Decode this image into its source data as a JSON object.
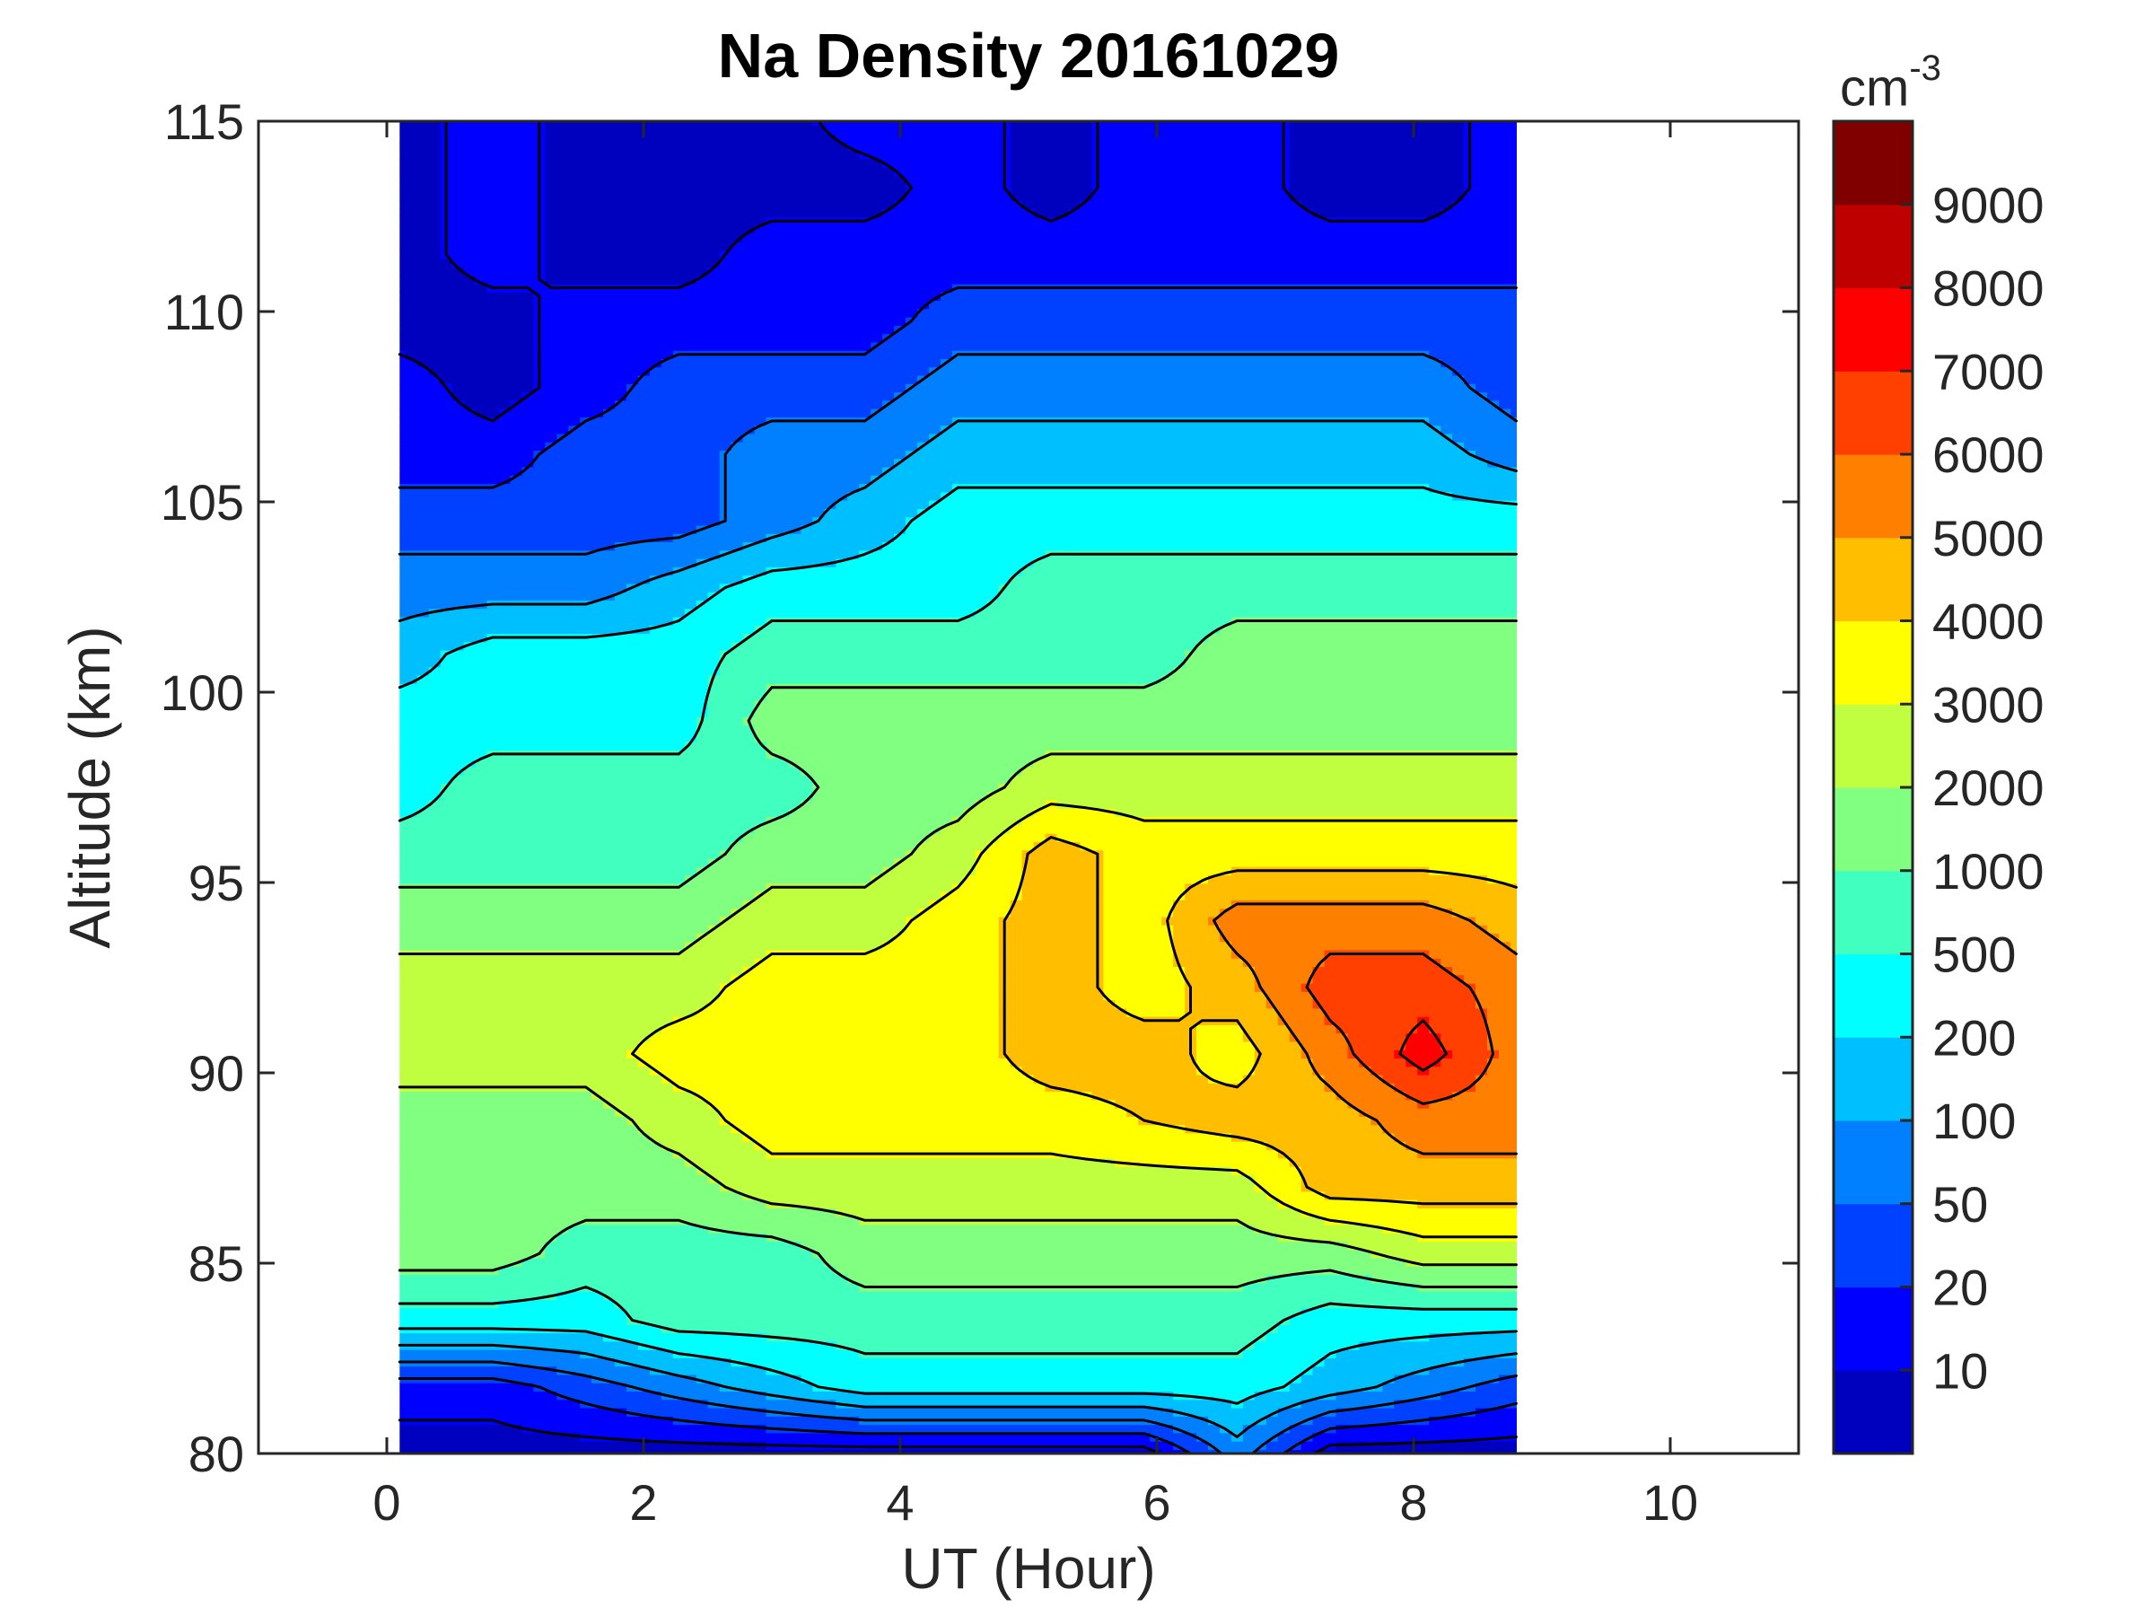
{
  "chart_data": {
    "type": "heatmap",
    "subtype": "filled-contour",
    "title": "Na Density 20161029",
    "xlabel": "UT (Hour)",
    "ylabel": "Altitude (km)",
    "xlim": [
      -1,
      11
    ],
    "ylim": [
      80,
      115
    ],
    "xticks": [
      0,
      2,
      4,
      6,
      8,
      10
    ],
    "yticks": [
      80,
      85,
      90,
      95,
      100,
      105,
      110,
      115
    ],
    "colorbar": {
      "unit": "cm",
      "unit_exponent": "-3",
      "levels": [
        0,
        10,
        20,
        50,
        100,
        200,
        500,
        1000,
        2000,
        3000,
        4000,
        5000,
        6000,
        7000,
        8000,
        9000,
        10000
      ],
      "tick_labels": [
        "10",
        "20",
        "50",
        "100",
        "200",
        "500",
        "1000",
        "2000",
        "3000",
        "4000",
        "5000",
        "6000",
        "7000",
        "8000",
        "9000"
      ],
      "colors": [
        "#0000BF",
        "#0000FF",
        "#0040FF",
        "#0080FF",
        "#00BFFF",
        "#00FFFF",
        "#40FFBF",
        "#80FF80",
        "#BFFF40",
        "#FFFF00",
        "#FFBF00",
        "#FF8000",
        "#FF4000",
        "#FF0000",
        "#BF0000",
        "#800000"
      ]
    },
    "x": [
      0.1,
      0.825,
      1.55,
      2.275,
      3.0,
      3.725,
      4.45,
      5.175,
      5.9,
      6.625,
      7.35,
      8.075,
      8.8
    ],
    "y": [
      80,
      81.75,
      83.5,
      85.25,
      87,
      88.75,
      90.5,
      92.25,
      94,
      95.75,
      97.5,
      99.25,
      101,
      102.75,
      104.5,
      106.25,
      108,
      109.75,
      111.5,
      113.25,
      115
    ],
    "z": [
      [
        5,
        5,
        5,
        5,
        5,
        5,
        5,
        5,
        5,
        75,
        5,
        5,
        5
      ],
      [
        15,
        15,
        35,
        75,
        150,
        350,
        350,
        350,
        350,
        350,
        150,
        75,
        35
      ],
      [
        350,
        350,
        350,
        750,
        750,
        750,
        750,
        750,
        750,
        750,
        350,
        350,
        350
      ],
      [
        1500,
        1500,
        750,
        750,
        750,
        1500,
        1500,
        1500,
        1500,
        1500,
        1500,
        2500,
        2500
      ],
      [
        1500,
        1500,
        1500,
        1500,
        2500,
        2500,
        2500,
        2500,
        2500,
        2500,
        4500,
        4500,
        4500
      ],
      [
        1500,
        1500,
        1500,
        2500,
        3500,
        3500,
        3500,
        3500,
        4000,
        4500,
        4500,
        5500,
        5500
      ],
      [
        2500,
        2500,
        2500,
        3500,
        3500,
        3500,
        3500,
        4500,
        4500,
        3500,
        5500,
        7500,
        5500
      ],
      [
        2500,
        2500,
        2500,
        2500,
        3500,
        3500,
        3500,
        4500,
        3500,
        4500,
        6500,
        6500,
        5500
      ],
      [
        1500,
        1500,
        1500,
        1500,
        2500,
        2500,
        3500,
        4500,
        3500,
        5500,
        5500,
        5500,
        4500
      ],
      [
        750,
        750,
        750,
        750,
        1500,
        1500,
        2500,
        4500,
        3500,
        3500,
        3500,
        3500,
        3500
      ],
      [
        350,
        750,
        750,
        750,
        750,
        1500,
        1500,
        2500,
        2500,
        2500,
        2500,
        2500,
        2500
      ],
      [
        350,
        350,
        350,
        350,
        1500,
        1500,
        1500,
        1500,
        1500,
        1500,
        1500,
        1500,
        1500
      ],
      [
        150,
        350,
        350,
        350,
        750,
        750,
        750,
        750,
        750,
        1500,
        1500,
        1500,
        1500
      ],
      [
        75,
        75,
        75,
        150,
        350,
        350,
        350,
        750,
        750,
        750,
        750,
        750,
        750
      ],
      [
        35,
        35,
        35,
        35,
        75,
        150,
        350,
        350,
        350,
        350,
        350,
        350,
        350
      ],
      [
        15,
        15,
        35,
        35,
        75,
        75,
        150,
        150,
        150,
        150,
        150,
        150,
        75
      ],
      [
        15,
        5,
        15,
        35,
        35,
        35,
        75,
        75,
        75,
        75,
        75,
        75,
        35
      ],
      [
        5,
        5,
        15,
        15,
        15,
        15,
        35,
        35,
        35,
        35,
        35,
        35,
        35
      ],
      [
        5,
        15,
        5,
        5,
        15,
        15,
        15,
        15,
        15,
        15,
        15,
        15,
        15
      ],
      [
        5,
        15,
        5,
        5,
        5,
        5,
        15,
        5,
        15,
        15,
        5,
        5,
        15
      ],
      [
        5,
        15,
        5,
        5,
        5,
        15,
        15,
        5,
        15,
        15,
        5,
        5,
        15
      ]
    ]
  }
}
